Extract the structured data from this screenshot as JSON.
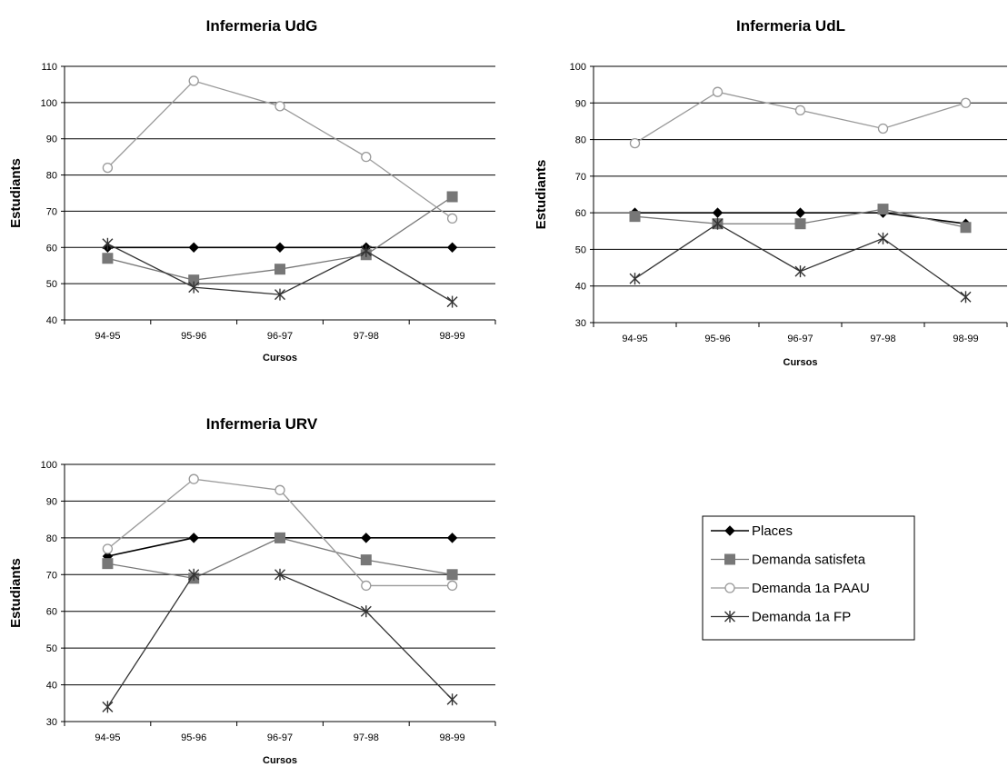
{
  "chart_data": [
    {
      "type": "line",
      "title": "Infermeria UdG",
      "xlabel": "Cursos",
      "ylabel": "Estudiants",
      "categories": [
        "94-95",
        "95-96",
        "96-97",
        "97-98",
        "98-99"
      ],
      "ylim": [
        40,
        110
      ],
      "yticks": [
        40,
        50,
        60,
        70,
        80,
        90,
        100,
        110
      ],
      "grid": "horizontal",
      "series": [
        {
          "name": "Places",
          "values": [
            60,
            60,
            60,
            60,
            60
          ]
        },
        {
          "name": "Demanda satisfeta",
          "values": [
            57,
            51,
            54,
            58,
            74
          ]
        },
        {
          "name": "Demanda 1a PAAU",
          "values": [
            82,
            106,
            99,
            85,
            68
          ]
        },
        {
          "name": "Demanda 1a FP",
          "values": [
            61,
            49,
            47,
            59,
            45
          ]
        }
      ]
    },
    {
      "type": "line",
      "title": "Infermeria UdL",
      "xlabel": "Cursos",
      "ylabel": "Estudiants",
      "categories": [
        "94-95",
        "95-96",
        "96-97",
        "97-98",
        "98-99"
      ],
      "ylim": [
        30,
        100
      ],
      "yticks": [
        30,
        40,
        50,
        60,
        70,
        80,
        90,
        100
      ],
      "grid": "horizontal",
      "series": [
        {
          "name": "Places",
          "values": [
            60,
            60,
            60,
            60,
            57
          ]
        },
        {
          "name": "Demanda satisfeta",
          "values": [
            59,
            57,
            57,
            61,
            56
          ]
        },
        {
          "name": "Demanda 1a PAAU",
          "values": [
            79,
            93,
            88,
            83,
            90
          ]
        },
        {
          "name": "Demanda 1a FP",
          "values": [
            42,
            57,
            44,
            53,
            37
          ]
        }
      ]
    },
    {
      "type": "line",
      "title": "Infermeria URV",
      "xlabel": "Cursos",
      "ylabel": "Estudiants",
      "categories": [
        "94-95",
        "95-96",
        "96-97",
        "97-98",
        "98-99"
      ],
      "ylim": [
        30,
        100
      ],
      "yticks": [
        30,
        40,
        50,
        60,
        70,
        80,
        90,
        100
      ],
      "grid": "horizontal",
      "series": [
        {
          "name": "Places",
          "values": [
            75,
            80,
            80,
            80,
            80
          ]
        },
        {
          "name": "Demanda satisfeta",
          "values": [
            73,
            69,
            80,
            74,
            70
          ]
        },
        {
          "name": "Demanda 1a PAAU",
          "values": [
            77,
            96,
            93,
            67,
            67
          ]
        },
        {
          "name": "Demanda 1a FP",
          "values": [
            34,
            70,
            70,
            60,
            36
          ]
        }
      ]
    }
  ],
  "legend": {
    "placement": "right of bottom chart",
    "items": [
      {
        "label": "Places",
        "marker": "diamond",
        "color": "#000000"
      },
      {
        "label": "Demanda satisfeta",
        "marker": "square",
        "color": "#777777"
      },
      {
        "label": "Demanda 1a PAAU",
        "marker": "circle",
        "color": "#999999"
      },
      {
        "label": "Demanda 1a FP",
        "marker": "asterisk",
        "color": "#333333"
      }
    ]
  },
  "series_styles": [
    {
      "color": "#000000",
      "marker": "diamond"
    },
    {
      "color": "#777777",
      "marker": "square"
    },
    {
      "color": "#999999",
      "marker": "circle"
    },
    {
      "color": "#333333",
      "marker": "asterisk"
    }
  ]
}
